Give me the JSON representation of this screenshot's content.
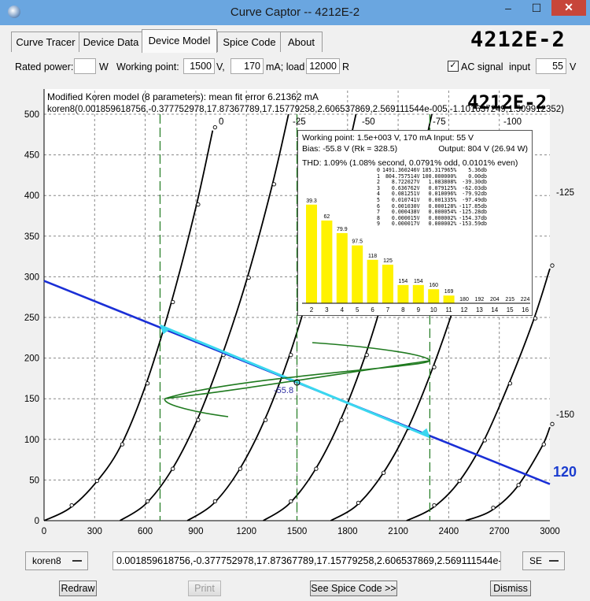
{
  "window": {
    "title": "Curve Captor -- 4212E-2",
    "close_glyph": "✕",
    "minimize_glyph": "–",
    "maximize_glyph": "☐"
  },
  "tabs": [
    {
      "label": "Curve Tracer"
    },
    {
      "label": "Device Data"
    },
    {
      "label": "Device Model",
      "active": true
    },
    {
      "label": "Spice Code"
    },
    {
      "label": "About"
    }
  ],
  "device_name": "4212E-2",
  "params": {
    "rated_power_label": "Rated power:",
    "rated_power_value": "",
    "rated_power_unit": "W",
    "working_point_label": "Working point:",
    "voltage_value": "1500",
    "voltage_unit": "V,",
    "current_value": "170",
    "current_unit": "mA; load",
    "load_value": "12000",
    "load_unit": "R",
    "ac_signal_checked": true,
    "ac_signal_label": "AC signal",
    "input_label": "input",
    "input_value": "55",
    "input_unit": "V"
  },
  "plot": {
    "model_line": "Modified Koren model (8 parameters): mean fit error 6.21362 mA",
    "params_line": "koren8(0.001859618756,-0.377752978,17.87367789,17.15779258,2.606537869,2.569111544e-005,-1.101637249,1.509912352)",
    "device_label": "4212E-2",
    "bias_marker": "-55.8",
    "load_label": "120",
    "grid_labels": [
      "0",
      "-25",
      "-50",
      "-75",
      "-100",
      "-125",
      "-150"
    ]
  },
  "thd_panel": {
    "line1": "Working point: 1.5e+003 V, 170 mA Input: 55 V",
    "line2_left": "Bias: -55.8 V (Rk = 328.5)",
    "line2_right": "Output: 804 V (26.94 W)",
    "line3": "THD: 1.09% (1.08% second, 0.0791% odd, 0.0101% even)",
    "table": [
      [
        "0",
        "1491.360246V",
        "185.317965%",
        "5.36db"
      ],
      [
        "1",
        "804.757514V",
        "100.000000%",
        "0.00db"
      ],
      [
        "2",
        "8.722027V",
        "1.083808%",
        "-39.30db"
      ],
      [
        "3",
        "0.636762V",
        "0.079125%",
        "-62.03db"
      ],
      [
        "4",
        "0.081251V",
        "0.010096%",
        "-79.92db"
      ],
      [
        "5",
        "0.010741V",
        "0.001335%",
        "-97.49db"
      ],
      [
        "6",
        "0.001030V",
        "0.000128%",
        "-117.85db"
      ],
      [
        "7",
        "0.000438V",
        "0.000054%",
        "-125.28db"
      ],
      [
        "8",
        "0.000015V",
        "0.000002%",
        "-154.37db"
      ],
      [
        "9",
        "0.000017V",
        "0.000002%",
        "-153.59db"
      ]
    ],
    "harmonics": [
      2,
      3,
      4,
      5,
      6,
      7,
      8,
      9,
      10,
      11,
      12,
      13,
      14,
      15,
      16
    ],
    "db_labels": [
      "39.3",
      "62",
      "79.9",
      "97.5",
      "118",
      "125",
      "154",
      "154",
      "160",
      "169",
      "180",
      "192",
      "204",
      "215",
      "224"
    ]
  },
  "chart_data": {
    "type": "line",
    "x_ticks": [
      "0",
      "300",
      "600",
      "900",
      "1200",
      "1500",
      "1800",
      "2100",
      "2400",
      "2700",
      "3000"
    ],
    "y_ticks": [
      "0",
      "50",
      "100",
      "150",
      "200",
      "250",
      "300",
      "350",
      "400",
      "450",
      "500"
    ],
    "xlim": [
      0,
      3000
    ],
    "ylim": [
      0,
      500
    ],
    "grid": true,
    "grid_curves": [
      {
        "grid_voltage": 0,
        "points": [
          [
            0,
            0
          ],
          [
            150,
            15
          ],
          [
            300,
            45
          ],
          [
            450,
            90
          ],
          [
            600,
            165
          ],
          [
            750,
            265
          ],
          [
            900,
            385
          ],
          [
            1000,
            480
          ]
        ]
      },
      {
        "grid_voltage": -25,
        "points": [
          [
            450,
            0
          ],
          [
            600,
            20
          ],
          [
            750,
            60
          ],
          [
            900,
            120
          ],
          [
            1050,
            200
          ],
          [
            1200,
            295
          ],
          [
            1350,
            410
          ],
          [
            1450,
            500
          ]
        ]
      },
      {
        "grid_voltage": -50,
        "points": [
          [
            850,
            0
          ],
          [
            1000,
            20
          ],
          [
            1150,
            60
          ],
          [
            1300,
            120
          ],
          [
            1450,
            200
          ],
          [
            1600,
            300
          ],
          [
            1750,
            410
          ],
          [
            1850,
            500
          ]
        ]
      },
      {
        "grid_voltage": -75,
        "points": [
          [
            1300,
            0
          ],
          [
            1450,
            20
          ],
          [
            1600,
            60
          ],
          [
            1750,
            120
          ],
          [
            1900,
            200
          ],
          [
            2050,
            300
          ],
          [
            2200,
            410
          ],
          [
            2300,
            500
          ]
        ]
      },
      {
        "grid_voltage": -100,
        "points": [
          [
            1700,
            0
          ],
          [
            1850,
            18
          ],
          [
            2000,
            55
          ],
          [
            2150,
            110
          ],
          [
            2300,
            185
          ],
          [
            2450,
            275
          ],
          [
            2600,
            380
          ],
          [
            2700,
            460
          ]
        ]
      },
      {
        "grid_voltage": -125,
        "points": [
          [
            2150,
            0
          ],
          [
            2300,
            15
          ],
          [
            2450,
            45
          ],
          [
            2600,
            95
          ],
          [
            2750,
            165
          ],
          [
            2900,
            245
          ],
          [
            3000,
            310
          ]
        ]
      },
      {
        "grid_voltage": -150,
        "points": [
          [
            2500,
            0
          ],
          [
            2650,
            12
          ],
          [
            2800,
            40
          ],
          [
            2950,
            90
          ],
          [
            3000,
            115
          ]
        ]
      }
    ],
    "load_line": [
      [
        0,
        295
      ],
      [
        3000,
        45
      ]
    ],
    "ac_swing": [
      [
        688,
        240
      ],
      [
        2288,
        103
      ]
    ],
    "working_point": [
      1500,
      170
    ],
    "harmonic_db": [
      39.3,
      62,
      79.9,
      97.5,
      118,
      125,
      154,
      154,
      160,
      169,
      180,
      192,
      204,
      215,
      224
    ]
  },
  "bottom": {
    "model_select": "koren8",
    "params_value": "0.001859618756,-0.377752978,17.87367789,17.15779258,2.606537869,2.569111544e-005,-1.101",
    "type_select": "SE",
    "redraw": "Redraw",
    "print": "Print",
    "spice": "See Spice Code >>",
    "dismiss": "Dismiss"
  }
}
